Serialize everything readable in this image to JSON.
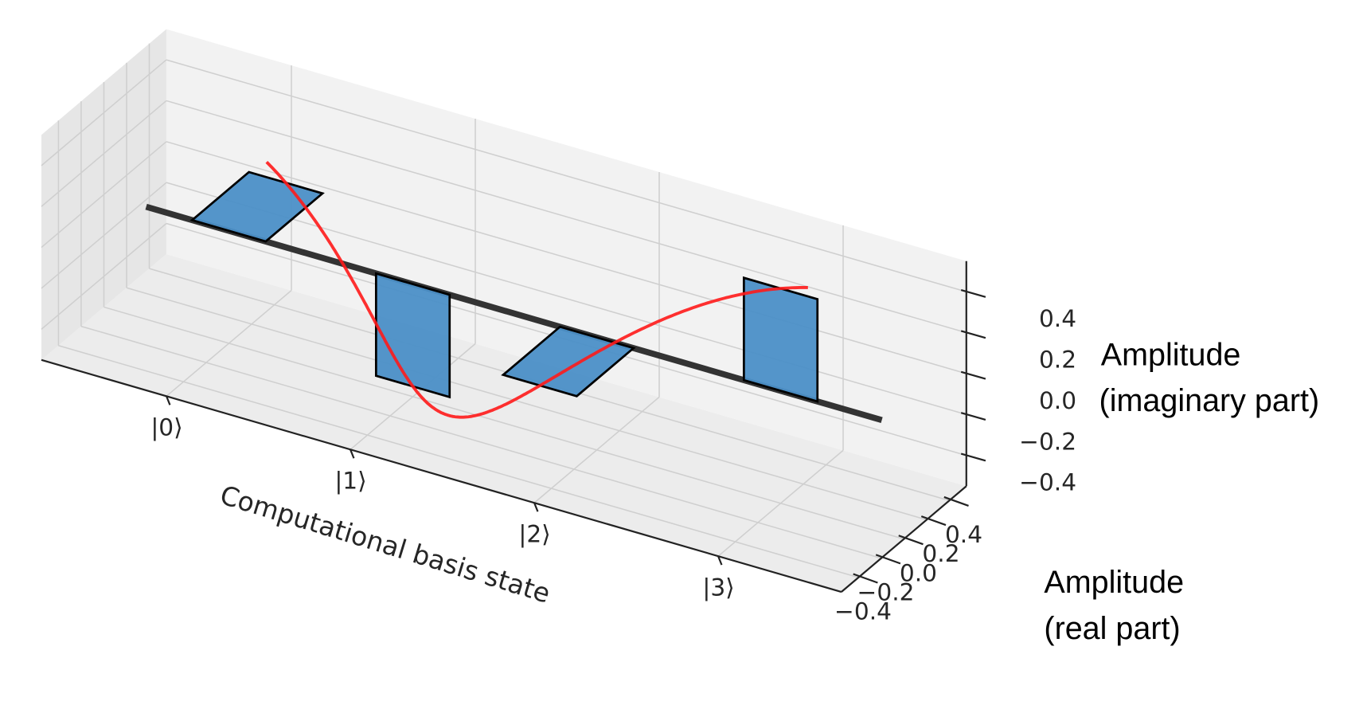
{
  "chart_data": {
    "type": "bar3d",
    "categories": [
      "|0⟩",
      "|1⟩",
      "|2⟩",
      "|3⟩"
    ],
    "real_part": [
      0.5,
      0.0,
      -0.5,
      0.0
    ],
    "imaginary_part": [
      0.0,
      -0.5,
      0.0,
      0.5
    ],
    "xlabel": "Computational basis state",
    "ylabel": [
      "Amplitude",
      "(real part)"
    ],
    "zlabel": [
      "Amplitude",
      "(imaginary part)"
    ],
    "real_ticks": [
      "−0.4",
      "−0.2",
      "0.0",
      "0.2",
      "0.4"
    ],
    "real_tick_values": [
      -0.4,
      -0.2,
      0.0,
      0.2,
      0.4
    ],
    "imag_ticks": [
      "−0.4",
      "−0.2",
      "0.0",
      "0.2",
      "0.4"
    ],
    "imag_tick_values": [
      -0.4,
      -0.2,
      0.0,
      0.2,
      0.4
    ],
    "ylim": [
      -0.55,
      0.55
    ],
    "zlim": [
      -0.55,
      0.55
    ],
    "grid": true,
    "curve": "continuous amplitude 0.5·e^(−iπx/2)",
    "colors": {
      "bar": "#4b8fc7",
      "bar_edge": "#000000",
      "curve": "#ff1a1a",
      "axis_line": "#333333",
      "pane": "#f2f2f2",
      "grid": "#cfcfcf"
    }
  }
}
